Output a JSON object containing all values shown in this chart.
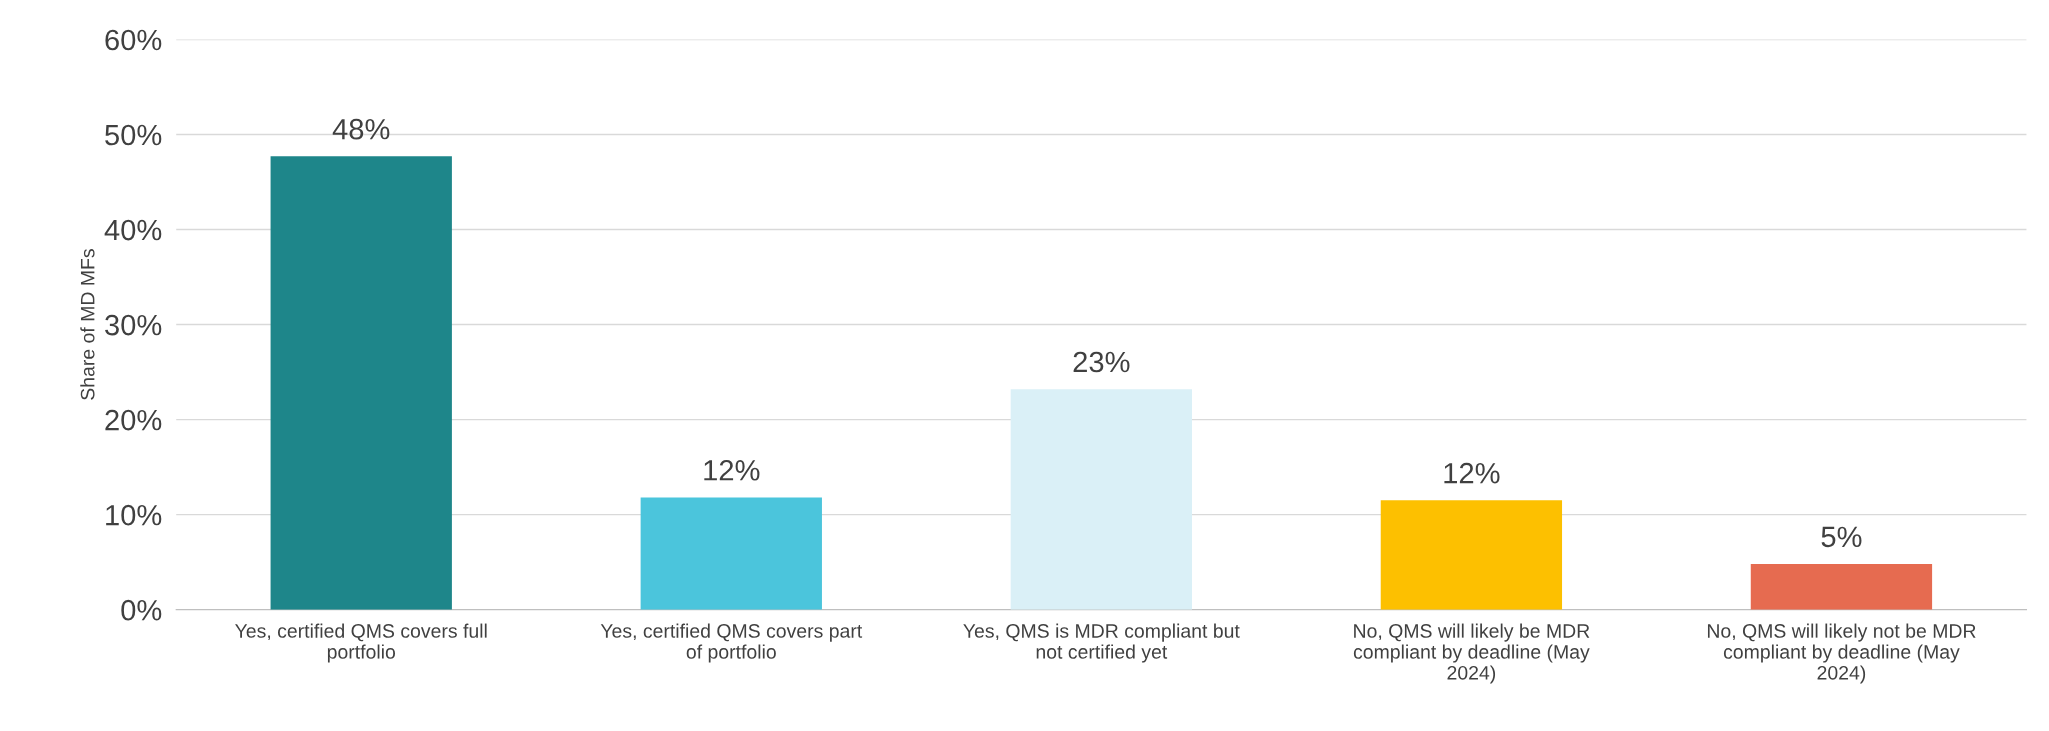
{
  "chart_data": {
    "type": "bar",
    "ylabel": "Share of MD MFs",
    "categories": [
      "Yes, certified QMS covers full portfolio",
      "Yes, certified QMS covers part of portfolio",
      "Yes, QMS is MDR compliant but not certified yet",
      "No, QMS will likely be MDR compliant by deadline (May 2024)",
      "No, QMS will likely not be MDR compliant by deadline (May 2024)"
    ],
    "values": [
      47.7,
      11.8,
      23.2,
      11.5,
      4.8
    ],
    "value_labels": [
      "48%",
      "12%",
      "23%",
      "12%",
      "5%"
    ],
    "colors": [
      "#1e868a",
      "#4bc5dc",
      "#daf0f7",
      "#fdc000",
      "#e66b50"
    ],
    "ylim": [
      0,
      60
    ],
    "yticks": [
      {
        "value": 0,
        "label": "0%"
      },
      {
        "value": 10,
        "label": "10%"
      },
      {
        "value": 20,
        "label": "20%"
      },
      {
        "value": 30,
        "label": "30%"
      },
      {
        "value": 40,
        "label": "40%"
      },
      {
        "value": 50,
        "label": "50%"
      },
      {
        "value": 60,
        "label": "60%"
      }
    ],
    "grid": "y"
  }
}
